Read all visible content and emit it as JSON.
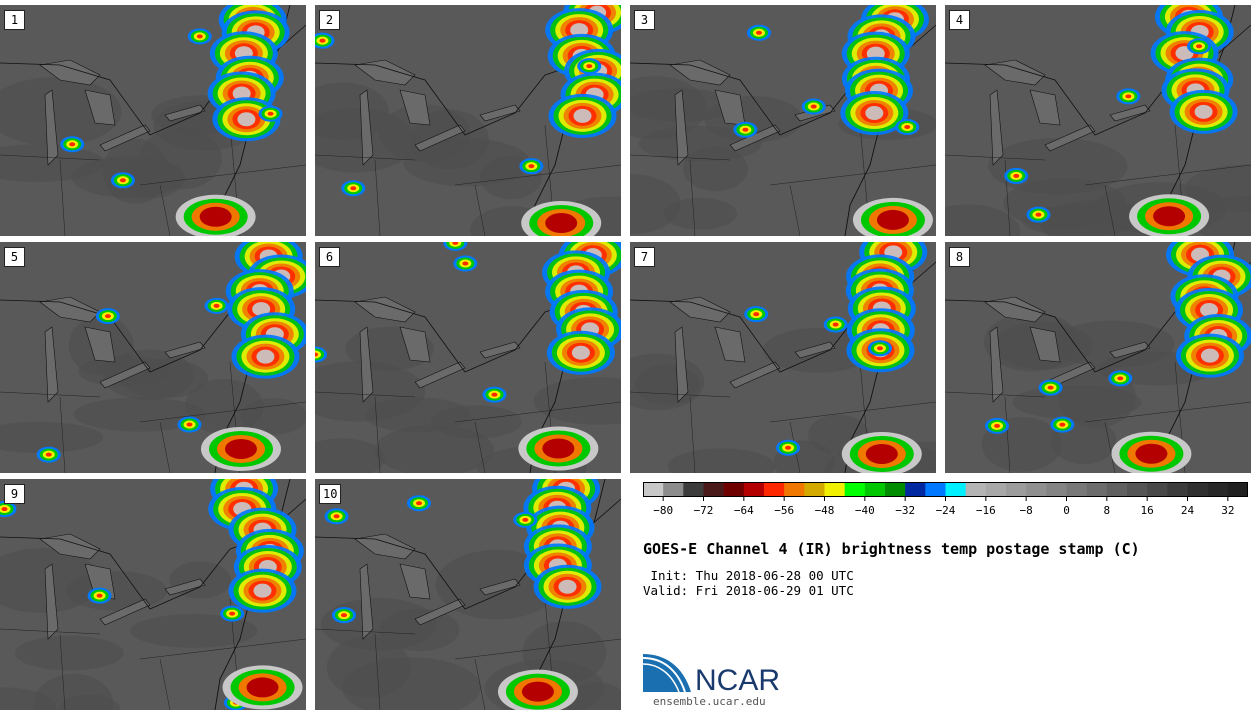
{
  "panels": [
    {
      "label": "1"
    },
    {
      "label": "2"
    },
    {
      "label": "3"
    },
    {
      "label": "4"
    },
    {
      "label": "5"
    },
    {
      "label": "6"
    },
    {
      "label": "7"
    },
    {
      "label": "8"
    },
    {
      "label": "9"
    },
    {
      "label": "10"
    }
  ],
  "title": "GOES-E Channel 4 (IR) brightness temp postage stamp (C)",
  "init": " Init: Thu 2018-06-28 00 UTC",
  "valid": "Valid: Fri 2018-06-29 01 UTC",
  "colorbar": {
    "ticks": [
      "−80",
      "−72",
      "−64",
      "−56",
      "−48",
      "−40",
      "−32",
      "−24",
      "−16",
      "−8",
      "0",
      "8",
      "16",
      "24",
      "32"
    ],
    "colors": [
      "#c8c8c8",
      "#8c8c8c",
      "#3c3c3c",
      "#4a1a1a",
      "#6e0000",
      "#b40000",
      "#ff2800",
      "#f07800",
      "#d4aa00",
      "#f0f000",
      "#00ff00",
      "#00c800",
      "#008c00",
      "#0028a0",
      "#0078ff",
      "#00f0ff",
      "#b4b4b4",
      "#a8a8a8",
      "#9c9c9c",
      "#909090",
      "#848484",
      "#787878",
      "#6c6c6c",
      "#606060",
      "#545454",
      "#484848",
      "#3c3c3c",
      "#303030",
      "#282828",
      "#202020"
    ]
  },
  "logo": {
    "text": "NCAR",
    "url": "ensemble.ucar.edu"
  }
}
